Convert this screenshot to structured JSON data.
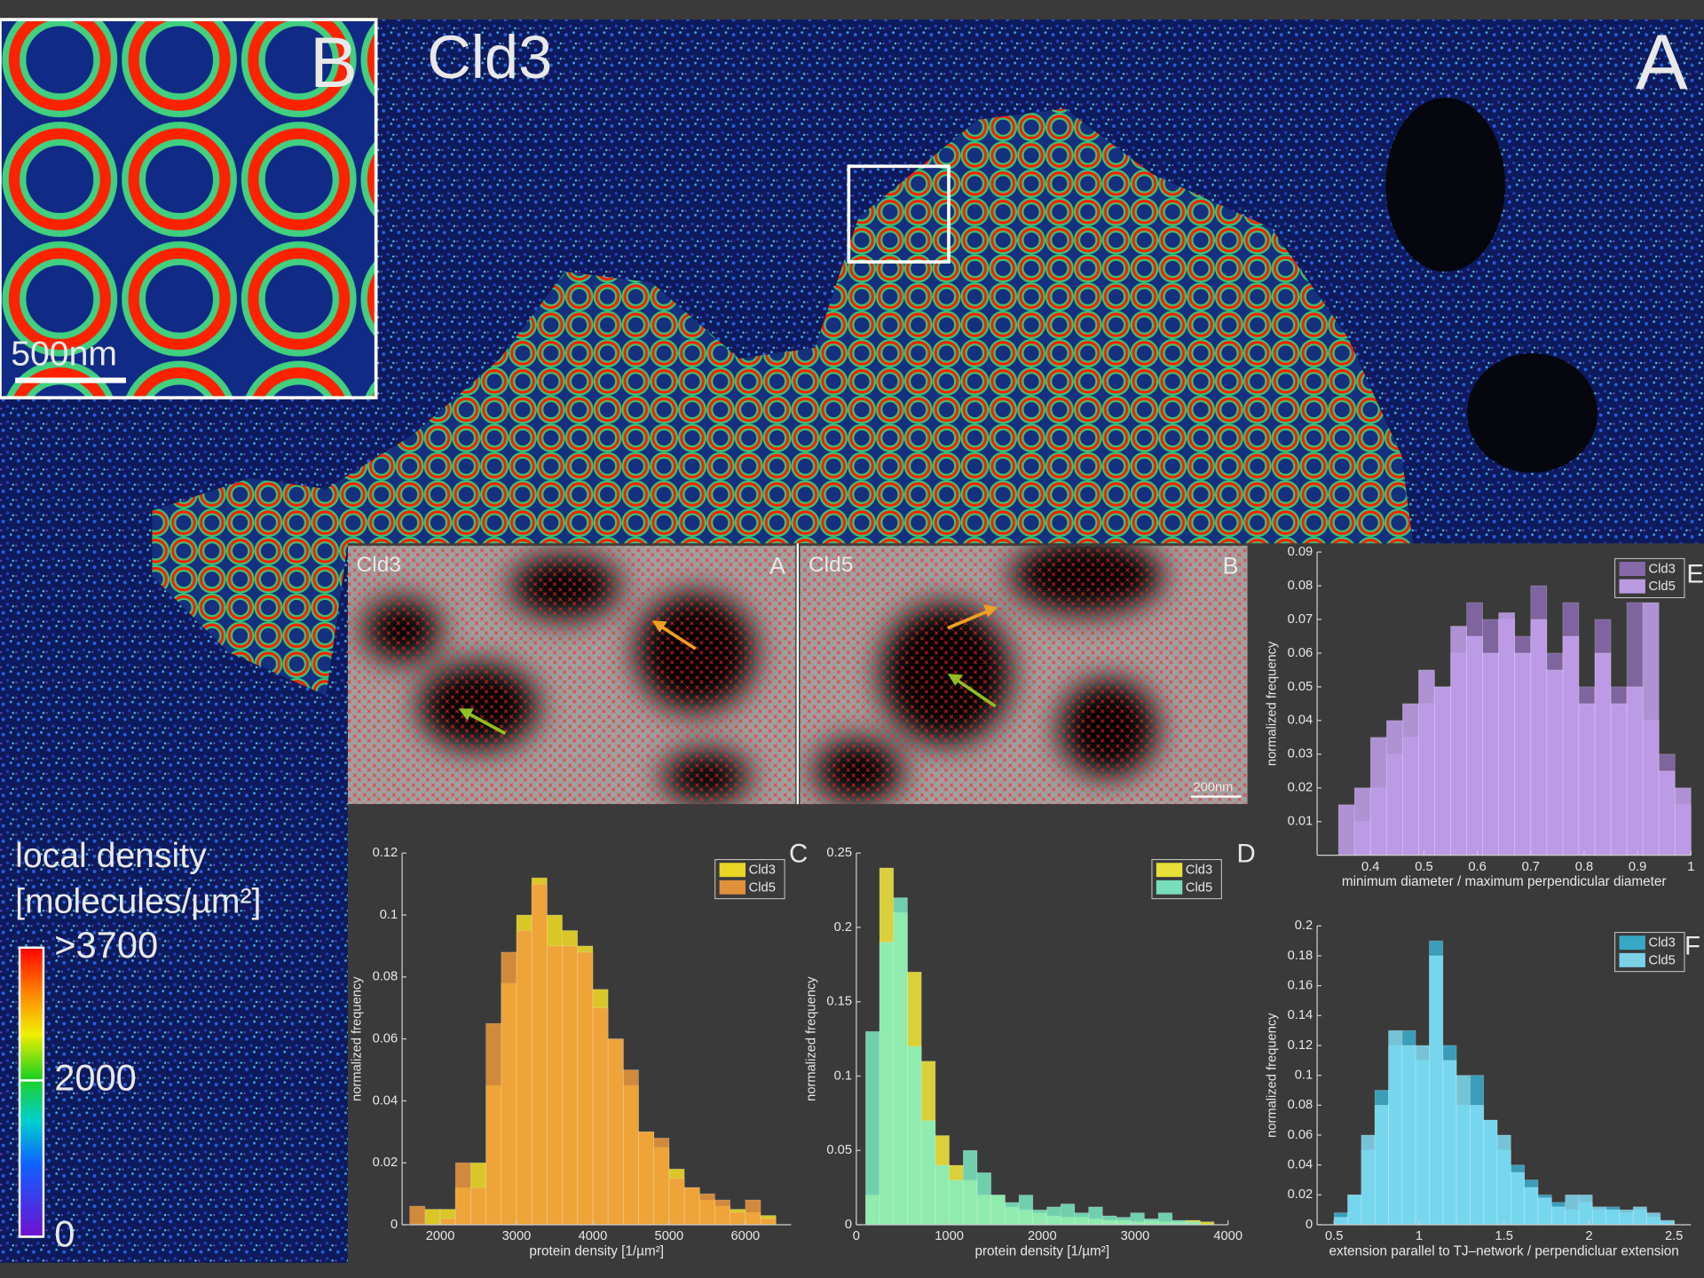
{
  "figure": {
    "title": "Cld3",
    "panel_a": "A",
    "panel_b": "B",
    "inset_scale": "500nm",
    "colorbar": {
      "title": [
        "local density",
        "[molecules/µm²]"
      ],
      "lim": [
        0,
        3700
      ],
      "ticks": [
        {
          "value": 3700,
          "label": ">3700"
        },
        2000,
        0
      ]
    },
    "detail": {
      "left_name": "Cld3",
      "left_label": "A",
      "right_name": "Cld5",
      "right_label": "B",
      "scale": "200nm"
    }
  },
  "chart_data": [
    {
      "type": "histogram",
      "panel_label": "C",
      "xlabel": "protein density [1/µm²]",
      "ylabel": "normalized frequency",
      "bins": [
        1600,
        1800,
        2000,
        2200,
        2400,
        2600,
        2800,
        3000,
        3200,
        3400,
        3600,
        3800,
        4000,
        4200,
        4400,
        4600,
        4800,
        5000,
        5200,
        5400,
        5600,
        5800,
        6000,
        6200,
        6400
      ],
      "series": [
        {
          "name": "Cld3",
          "color": "#fde725",
          "values": [
            0,
            0.005,
            0.005,
            0.012,
            0.02,
            0.045,
            0.078,
            0.1,
            0.112,
            0.1,
            0.095,
            0.09,
            0.076,
            0.06,
            0.045,
            0.03,
            0.025,
            0.018,
            0.012,
            0.008,
            0.006,
            0.005,
            0.004,
            0.003
          ]
        },
        {
          "name": "Cld5",
          "color": "#f39c3c",
          "values": [
            0.006,
            0,
            0.002,
            0.02,
            0.012,
            0.065,
            0.088,
            0.095,
            0.11,
            0.09,
            0.09,
            0.088,
            0.07,
            0.06,
            0.05,
            0.03,
            0.028,
            0.015,
            0.012,
            0.01,
            0.008,
            0.004,
            0.008,
            0.002
          ]
        }
      ],
      "xlim": [
        1500,
        6600
      ],
      "ylim": [
        0,
        0.12
      ],
      "xticks": [
        2000,
        3000,
        4000,
        5000,
        6000
      ],
      "yticks": [
        0,
        0.02,
        0.04,
        0.06,
        0.08,
        0.1,
        0.12
      ],
      "legend": "upper right"
    },
    {
      "type": "histogram",
      "panel_label": "D",
      "xlabel": "protein density [1/µm²]",
      "ylabel": "normalized frequency",
      "bins": [
        100,
        250,
        400,
        550,
        700,
        850,
        1000,
        1150,
        1300,
        1450,
        1600,
        1750,
        1900,
        2050,
        2200,
        2350,
        2500,
        2650,
        2800,
        2950,
        3100,
        3250,
        3400,
        3550,
        3700,
        3850
      ],
      "series": [
        {
          "name": "Cld3",
          "color": "#fdf23a",
          "values": [
            0.02,
            0.24,
            0.21,
            0.17,
            0.11,
            0.06,
            0.04,
            0.03,
            0.02,
            0.02,
            0.012,
            0.01,
            0.008,
            0.006,
            0.005,
            0.005,
            0.004,
            0.003,
            0.003,
            0.002,
            0.003,
            0.002,
            0.002,
            0.003,
            0.002
          ]
        },
        {
          "name": "Cld5",
          "color": "#7ff0c8",
          "values": [
            0.13,
            0.19,
            0.22,
            0.12,
            0.07,
            0.04,
            0.03,
            0.05,
            0.035,
            0.02,
            0.015,
            0.02,
            0.01,
            0.012,
            0.014,
            0.008,
            0.012,
            0.006,
            0.005,
            0.008,
            0.004,
            0.008,
            0.003,
            0.002,
            0
          ]
        }
      ],
      "xlim": [
        0,
        4000
      ],
      "ylim": [
        0,
        0.25
      ],
      "xticks": [
        0,
        1000,
        2000,
        3000,
        4000
      ],
      "yticks": [
        0,
        0.05,
        0.1,
        0.15,
        0.2,
        0.25
      ],
      "legend": "upper right"
    },
    {
      "type": "histogram",
      "panel_label": "E",
      "xlabel": "minimum diameter / maximum perpendicular diameter",
      "ylabel": "normalized frequency",
      "bins": [
        0.34,
        0.37,
        0.4,
        0.43,
        0.46,
        0.49,
        0.52,
        0.55,
        0.58,
        0.61,
        0.64,
        0.67,
        0.7,
        0.73,
        0.76,
        0.79,
        0.82,
        0.85,
        0.88,
        0.91,
        0.94,
        0.97,
        1
      ],
      "series": [
        {
          "name": "Cld3",
          "color": "#8e6fb5",
          "values": [
            0,
            0.01,
            0.02,
            0.03,
            0.035,
            0.045,
            0.05,
            0.06,
            0.075,
            0.07,
            0.07,
            0.065,
            0.08,
            0.06,
            0.075,
            0.05,
            0.07,
            0.05,
            0.075,
            0.04,
            0.03,
            0.015
          ]
        },
        {
          "name": "Cld5",
          "color": "#c9a6f5",
          "values": [
            0.015,
            0.02,
            0.035,
            0.04,
            0.045,
            0.055,
            0.05,
            0.068,
            0.065,
            0.06,
            0.072,
            0.06,
            0.07,
            0.055,
            0.065,
            0.045,
            0.06,
            0.045,
            0.05,
            0.075,
            0.025,
            0.02
          ]
        }
      ],
      "xlim": [
        0.3,
        1
      ],
      "ylim": [
        0,
        0.09
      ],
      "xticks": [
        0.4,
        0.5,
        0.6,
        0.7,
        0.8,
        0.9,
        1
      ],
      "yticks": [
        0.01,
        0.02,
        0.03,
        0.04,
        0.05,
        0.06,
        0.07,
        0.08,
        0.09
      ],
      "legend": "upper right"
    },
    {
      "type": "histogram",
      "panel_label": "F",
      "xlabel": "extension parallel to TJ–network / perpendicluar extension",
      "ylabel": "normalized frequency",
      "bins": [
        0.5,
        0.58,
        0.66,
        0.74,
        0.82,
        0.9,
        0.98,
        1.06,
        1.14,
        1.22,
        1.3,
        1.38,
        1.46,
        1.54,
        1.62,
        1.7,
        1.78,
        1.86,
        1.94,
        2.02,
        2.1,
        2.18,
        2.26,
        2.34,
        2.42,
        2.5
      ],
      "series": [
        {
          "name": "Cld3",
          "color": "#3ab4d6",
          "values": [
            0.008,
            0.02,
            0.05,
            0.09,
            0.12,
            0.13,
            0.11,
            0.19,
            0.12,
            0.08,
            0.1,
            0.07,
            0.05,
            0.04,
            0.03,
            0.02,
            0.015,
            0.01,
            0.015,
            0.01,
            0.012,
            0.008,
            0.01,
            0.005,
            0.002
          ]
        },
        {
          "name": "Cld5",
          "color": "#84e2fa",
          "values": [
            0.005,
            0.02,
            0.06,
            0.08,
            0.13,
            0.12,
            0.12,
            0.18,
            0.11,
            0.1,
            0.08,
            0.07,
            0.06,
            0.035,
            0.025,
            0.018,
            0.012,
            0.02,
            0.02,
            0.012,
            0.01,
            0.01,
            0.012,
            0.008,
            0.003
          ]
        }
      ],
      "xlim": [
        0.4,
        2.6
      ],
      "ylim": [
        0,
        0.2
      ],
      "xticks": [
        0.5,
        1,
        1.5,
        2,
        2.5
      ],
      "yticks": [
        0,
        0.02,
        0.04,
        0.06,
        0.08,
        0.1,
        0.12,
        0.14,
        0.16,
        0.18,
        0.2
      ],
      "legend": "upper right"
    }
  ]
}
